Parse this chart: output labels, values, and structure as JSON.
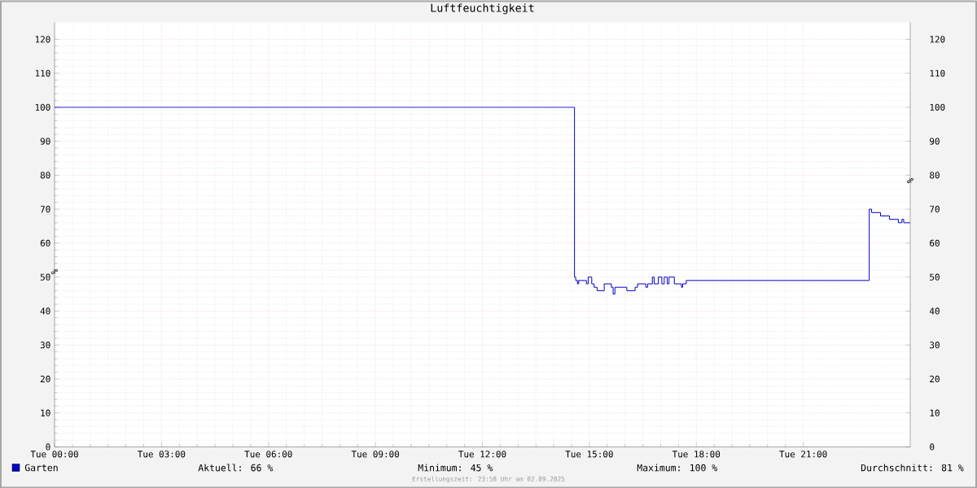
{
  "chart_data": {
    "type": "step",
    "title": "Luftfeuchtigkeit",
    "ylabel": "%",
    "y2label": "%",
    "series": [
      {
        "name": "Garten",
        "color": "#0000cc",
        "x": [
          "2025-09-02T00:00",
          "2025-09-02T14:35",
          "2025-09-02T14:37",
          "2025-09-02T14:40",
          "2025-09-02T14:42",
          "2025-09-02T14:55",
          "2025-09-02T14:58",
          "2025-09-02T15:04",
          "2025-09-02T15:08",
          "2025-09-02T15:13",
          "2025-09-02T15:25",
          "2025-09-02T15:37",
          "2025-09-02T15:40",
          "2025-09-02T15:43",
          "2025-09-02T16:03",
          "2025-09-02T16:17",
          "2025-09-02T16:21",
          "2025-09-02T16:35",
          "2025-09-02T16:38",
          "2025-09-02T16:46",
          "2025-09-02T16:49",
          "2025-09-02T16:56",
          "2025-09-02T17:02",
          "2025-09-02T17:06",
          "2025-09-02T17:11",
          "2025-09-02T17:14",
          "2025-09-02T17:23",
          "2025-09-02T17:35",
          "2025-09-02T17:37",
          "2025-09-02T17:43",
          "2025-09-02T22:51",
          "2025-09-02T22:55",
          "2025-09-02T23:10",
          "2025-09-02T23:25",
          "2025-09-02T23:40",
          "2025-09-02T23:46",
          "2025-09-02T23:49",
          "2025-09-03T00:00"
        ],
        "values": [
          100,
          50,
          49,
          48,
          49,
          48,
          50,
          48,
          47,
          46,
          48,
          47,
          45,
          47,
          46,
          47,
          48,
          47,
          48,
          50,
          48,
          50,
          48,
          50,
          48,
          50,
          48,
          47,
          48,
          49,
          70,
          69,
          68,
          67,
          66,
          67,
          66,
          66
        ]
      }
    ],
    "xlim": [
      "2025-09-02T00:00",
      "2025-09-03T00:00"
    ],
    "xticks": [
      {
        "value": "2025-09-02T00:00",
        "label": "Tue 00:00"
      },
      {
        "value": "2025-09-02T03:00",
        "label": "Tue 03:00"
      },
      {
        "value": "2025-09-02T06:00",
        "label": "Tue 06:00"
      },
      {
        "value": "2025-09-02T09:00",
        "label": "Tue 09:00"
      },
      {
        "value": "2025-09-02T12:00",
        "label": "Tue 12:00"
      },
      {
        "value": "2025-09-02T15:00",
        "label": "Tue 15:00"
      },
      {
        "value": "2025-09-02T18:00",
        "label": "Tue 18:00"
      },
      {
        "value": "2025-09-02T21:00",
        "label": "Tue 21:00"
      }
    ],
    "ylim": [
      0,
      125
    ],
    "yticks": [
      0,
      10,
      20,
      30,
      40,
      50,
      60,
      70,
      80,
      90,
      100,
      110,
      120
    ],
    "y2lim": [
      0,
      125
    ],
    "y2ticks": [
      0,
      10,
      20,
      30,
      40,
      50,
      60,
      70,
      80,
      90,
      100,
      110,
      120
    ],
    "grid": true,
    "legend": "bottom left",
    "annotations": [
      "Aktuell:  66 %",
      "Minimum:  45 %",
      "Maximum: 100 %",
      "Durchschnitt:  81 %",
      "Erstellungszeit: 23:58 Uhr am 02.09.2025"
    ]
  }
}
